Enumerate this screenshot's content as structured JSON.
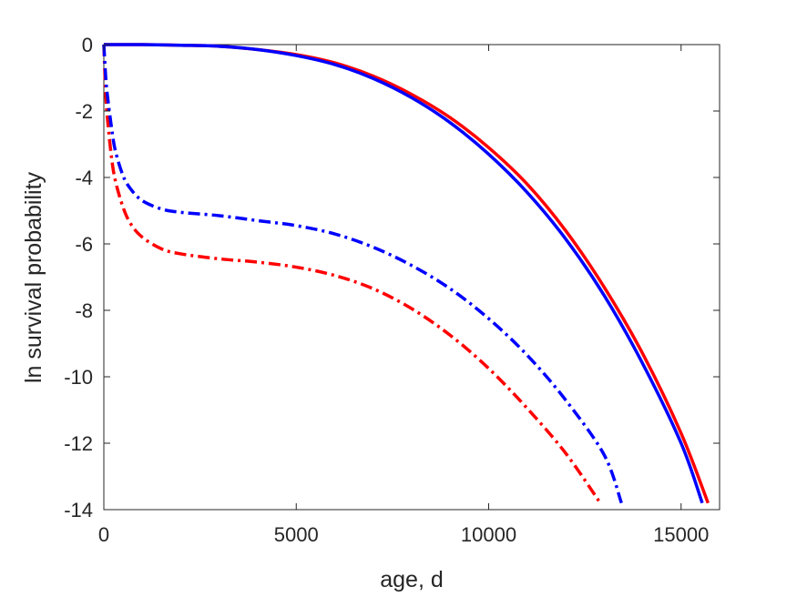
{
  "chart_data": {
    "type": "line",
    "title": "",
    "xlabel": "age, d",
    "ylabel": "ln survival probability",
    "xlim": [
      0,
      16000
    ],
    "ylim": [
      -14,
      0
    ],
    "xticks": [
      0,
      5000,
      10000,
      15000
    ],
    "yticks": [
      0,
      -2,
      -4,
      -6,
      -8,
      -10,
      -12,
      -14
    ],
    "grid": false,
    "legend": "none",
    "series": [
      {
        "color": "#ff0000",
        "style": "solid",
        "x": [
          0,
          1000,
          2000,
          3000,
          4000,
          5000,
          6000,
          7000,
          8000,
          9000,
          10000,
          11000,
          12000,
          13000,
          14000,
          15000,
          15700
        ],
        "y": [
          0,
          0,
          -0.02,
          -0.05,
          -0.15,
          -0.3,
          -0.55,
          -0.95,
          -1.5,
          -2.2,
          -3.1,
          -4.2,
          -5.6,
          -7.3,
          -9.3,
          -11.7,
          -13.8
        ]
      },
      {
        "color": "#0000ff",
        "style": "solid",
        "x": [
          0,
          1000,
          2000,
          3000,
          4000,
          5000,
          6000,
          7000,
          8000,
          9000,
          10000,
          11000,
          12000,
          13000,
          14000,
          15000,
          15550
        ],
        "y": [
          0,
          0,
          -0.02,
          -0.05,
          -0.15,
          -0.33,
          -0.6,
          -1.02,
          -1.6,
          -2.35,
          -3.3,
          -4.45,
          -5.85,
          -7.55,
          -9.6,
          -12.0,
          -13.8
        ]
      },
      {
        "color": "#ff0000",
        "style": "dashdot",
        "x": [
          0,
          50,
          100,
          200,
          300,
          500,
          700,
          1000,
          1500,
          2000,
          3000,
          4000,
          5000,
          6000,
          7000,
          8000,
          9000,
          10000,
          11000,
          12000,
          12900
        ],
        "y": [
          0,
          -1.5,
          -2.3,
          -3.4,
          -4.1,
          -4.9,
          -5.4,
          -5.8,
          -6.15,
          -6.3,
          -6.45,
          -6.55,
          -6.7,
          -6.95,
          -7.35,
          -7.95,
          -8.75,
          -9.75,
          -10.95,
          -12.3,
          -13.8
        ]
      },
      {
        "color": "#0000ff",
        "style": "dashdot",
        "x": [
          0,
          50,
          100,
          200,
          300,
          500,
          700,
          1000,
          1500,
          2000,
          3000,
          4000,
          5000,
          6000,
          7000,
          8000,
          9000,
          10000,
          11000,
          12000,
          13000,
          13450
        ],
        "y": [
          0,
          -1.0,
          -1.6,
          -2.5,
          -3.2,
          -3.95,
          -4.35,
          -4.7,
          -4.95,
          -5.05,
          -5.15,
          -5.3,
          -5.45,
          -5.7,
          -6.1,
          -6.65,
          -7.35,
          -8.25,
          -9.35,
          -10.7,
          -12.35,
          -13.8
        ]
      }
    ]
  }
}
